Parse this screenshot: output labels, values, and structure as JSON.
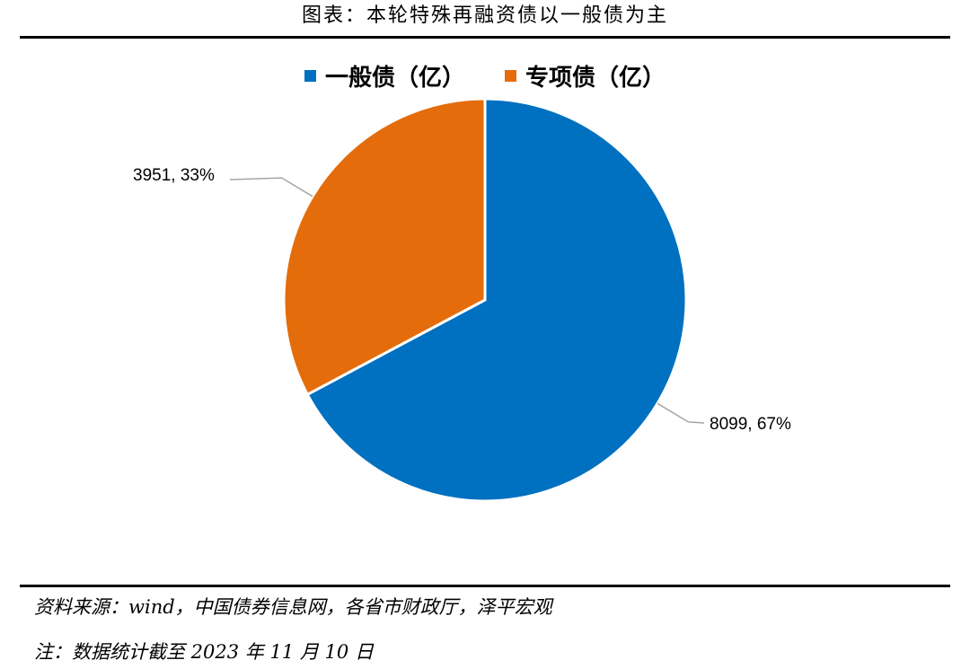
{
  "title": "图表：本轮特殊再融资债以一般债为主",
  "chart_data": {
    "type": "pie",
    "series": [
      {
        "name": "一般债（亿）",
        "value": 8099,
        "percent": "67%",
        "label": "8099, 67%",
        "color": "#0070C0"
      },
      {
        "name": "专项债（亿）",
        "value": 3951,
        "percent": "33%",
        "label": "3951, 33%",
        "color": "#E46C0A"
      }
    ],
    "legend_position": "top",
    "start_angle": "12 o'clock, clockwise"
  },
  "footnotes": {
    "source": "资料来源：wind，中国债券信息网，各省市财政厅，泽平宏观",
    "note": "注：数据统计截至 2023 年 11 月 10 日"
  }
}
